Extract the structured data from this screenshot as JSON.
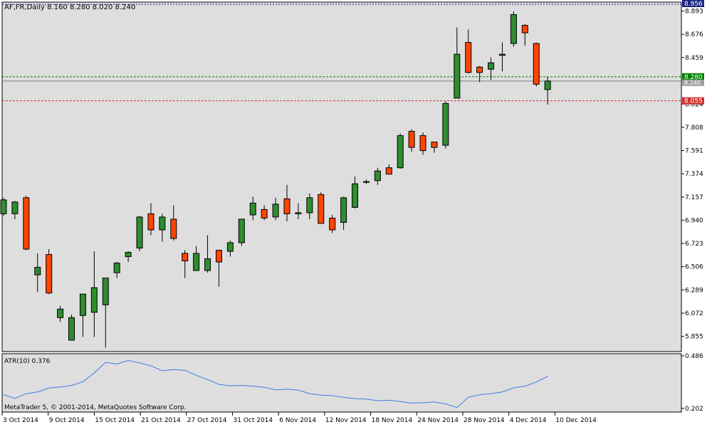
{
  "window": {
    "title": "AF,FR,Daily  8.160 8.280 8.020 8.240",
    "copyright": "MetaTrader 5, © 2001-2014, MetaQuotes Software Corp."
  },
  "colors": {
    "background": "#dedede",
    "bull_candle": "#2f8c2f",
    "bear_candle": "#ff4500",
    "wick": "#000000",
    "bid_line": "#008000",
    "ask_line": "#d03030",
    "price_line": "#808080",
    "atr_line": "#3a7de0",
    "axis_text": "#000000"
  },
  "chart_data": [
    {
      "type": "candlestick",
      "title": "AF,FR,Daily  8.160 8.280 8.020 8.240",
      "symbol": "AF,FR",
      "timeframe": "Daily",
      "ylim": [
        5.72,
        8.97
      ],
      "yticks": [
        "8.893",
        "8.676",
        "8.459",
        "8.241",
        "8.024",
        "7.808",
        "7.591",
        "7.374",
        "7.157",
        "6.940",
        "6.723",
        "6.506",
        "6.289",
        "6.072",
        "5.855"
      ],
      "xlabels": [
        "3 Oct 2014",
        "9 Oct 2014",
        "15 Oct 2014",
        "21 Oct 2014",
        "27 Oct 2014",
        "31 Oct 2014",
        "6 Nov 2014",
        "12 Nov 2014",
        "18 Nov 2014",
        "24 Nov 2014",
        "28 Nov 2014",
        "4 Dec 2014",
        "10 Dec 2014"
      ],
      "price_labels": {
        "high": "8.956",
        "bid": "8.280",
        "last": "8.240",
        "ask": "8.055"
      },
      "levels": {
        "high": 8.956,
        "bid": 8.28,
        "last": 8.24,
        "ask": 8.055
      },
      "candles": [
        {
          "o": 7.0,
          "h": 7.15,
          "l": 6.98,
          "c": 7.13
        },
        {
          "o": 7.0,
          "h": 7.12,
          "l": 6.95,
          "c": 7.11
        },
        {
          "o": 7.15,
          "h": 7.17,
          "l": 6.66,
          "c": 6.67
        },
        {
          "o": 6.43,
          "h": 6.63,
          "l": 6.27,
          "c": 6.5
        },
        {
          "o": 6.62,
          "h": 6.67,
          "l": 6.25,
          "c": 6.26
        },
        {
          "o": 6.03,
          "h": 6.14,
          "l": 5.99,
          "c": 6.11
        },
        {
          "o": 5.82,
          "h": 6.06,
          "l": 5.82,
          "c": 6.03
        },
        {
          "o": 6.05,
          "h": 6.25,
          "l": 5.85,
          "c": 6.25
        },
        {
          "o": 6.08,
          "h": 6.65,
          "l": 5.85,
          "c": 6.31
        },
        {
          "o": 6.15,
          "h": 6.4,
          "l": 5.75,
          "c": 6.4
        },
        {
          "o": 6.45,
          "h": 6.55,
          "l": 6.4,
          "c": 6.54
        },
        {
          "o": 6.6,
          "h": 6.65,
          "l": 6.55,
          "c": 6.64
        },
        {
          "o": 6.68,
          "h": 6.98,
          "l": 6.65,
          "c": 6.97
        },
        {
          "o": 7.0,
          "h": 7.1,
          "l": 6.8,
          "c": 6.85
        },
        {
          "o": 6.85,
          "h": 7.0,
          "l": 6.74,
          "c": 6.97
        },
        {
          "o": 6.95,
          "h": 7.08,
          "l": 6.75,
          "c": 6.77
        },
        {
          "o": 6.63,
          "h": 6.66,
          "l": 6.4,
          "c": 6.56
        },
        {
          "o": 6.47,
          "h": 6.7,
          "l": 6.47,
          "c": 6.63
        },
        {
          "o": 6.47,
          "h": 6.8,
          "l": 6.45,
          "c": 6.58
        },
        {
          "o": 6.66,
          "h": 6.66,
          "l": 6.32,
          "c": 6.55
        },
        {
          "o": 6.65,
          "h": 6.75,
          "l": 6.6,
          "c": 6.73
        },
        {
          "o": 6.73,
          "h": 6.95,
          "l": 6.7,
          "c": 6.95
        },
        {
          "o": 6.99,
          "h": 7.16,
          "l": 6.94,
          "c": 7.1
        },
        {
          "o": 7.04,
          "h": 7.08,
          "l": 6.94,
          "c": 6.96
        },
        {
          "o": 6.97,
          "h": 7.15,
          "l": 6.94,
          "c": 7.09
        },
        {
          "o": 7.14,
          "h": 7.27,
          "l": 6.93,
          "c": 7.0
        },
        {
          "o": 7.0,
          "h": 7.1,
          "l": 6.95,
          "c": 7.01
        },
        {
          "o": 7.01,
          "h": 7.19,
          "l": 6.95,
          "c": 7.15
        },
        {
          "o": 7.18,
          "h": 7.2,
          "l": 6.91,
          "c": 6.91
        },
        {
          "o": 6.96,
          "h": 6.99,
          "l": 6.82,
          "c": 6.85
        },
        {
          "o": 6.92,
          "h": 7.16,
          "l": 6.85,
          "c": 7.15
        },
        {
          "o": 7.06,
          "h": 7.35,
          "l": 7.05,
          "c": 7.28
        },
        {
          "o": 7.3,
          "h": 7.32,
          "l": 7.28,
          "c": 7.3
        },
        {
          "o": 7.31,
          "h": 7.43,
          "l": 7.27,
          "c": 7.4
        },
        {
          "o": 7.43,
          "h": 7.46,
          "l": 7.37,
          "c": 7.37
        },
        {
          "o": 7.43,
          "h": 7.75,
          "l": 7.42,
          "c": 7.73
        },
        {
          "o": 7.77,
          "h": 7.79,
          "l": 7.58,
          "c": 7.62
        },
        {
          "o": 7.73,
          "h": 7.76,
          "l": 7.55,
          "c": 7.59
        },
        {
          "o": 7.67,
          "h": 7.67,
          "l": 7.57,
          "c": 7.62
        },
        {
          "o": 7.64,
          "h": 8.05,
          "l": 7.61,
          "c": 8.03
        },
        {
          "o": 8.08,
          "h": 8.74,
          "l": 8.08,
          "c": 8.49
        },
        {
          "o": 8.6,
          "h": 8.72,
          "l": 8.31,
          "c": 8.32
        },
        {
          "o": 8.37,
          "h": 8.38,
          "l": 8.23,
          "c": 8.32
        },
        {
          "o": 8.35,
          "h": 8.46,
          "l": 8.25,
          "c": 8.41
        },
        {
          "o": 8.48,
          "h": 8.6,
          "l": 8.33,
          "c": 8.49
        },
        {
          "o": 8.59,
          "h": 8.89,
          "l": 8.56,
          "c": 8.86
        },
        {
          "o": 8.76,
          "h": 8.77,
          "l": 8.57,
          "c": 8.69
        },
        {
          "o": 8.59,
          "h": 8.6,
          "l": 8.19,
          "c": 8.21
        },
        {
          "o": 8.16,
          "h": 8.28,
          "l": 8.02,
          "c": 8.24
        }
      ]
    },
    {
      "type": "line",
      "title": "ATR(10) 0.376",
      "ylim": [
        0.19,
        0.49
      ],
      "yticks": [
        "0.486",
        "0.202"
      ],
      "series": [
        {
          "values": [
            0.276,
            0.256,
            0.282,
            0.291,
            0.312,
            0.318,
            0.326,
            0.346,
            0.394,
            0.451,
            0.442,
            0.461,
            0.448,
            0.432,
            0.406,
            0.412,
            0.408,
            0.381,
            0.358,
            0.332,
            0.324,
            0.326,
            0.322,
            0.316,
            0.302,
            0.306,
            0.301,
            0.282,
            0.274,
            0.271,
            0.262,
            0.255,
            0.252,
            0.244,
            0.246,
            0.239,
            0.231,
            0.233,
            0.237,
            0.226,
            0.207,
            0.262,
            0.276,
            0.282,
            0.291,
            0.313,
            0.322,
            0.344,
            0.376
          ]
        }
      ]
    }
  ]
}
